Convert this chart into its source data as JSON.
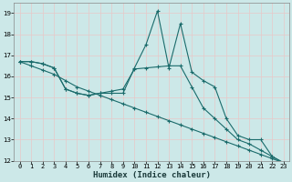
{
  "xlabel": "Humidex (Indice chaleur)",
  "bg_color": "#cce8e8",
  "grid_color": "#e8c8c8",
  "line_color": "#1a6b6b",
  "xlim": [
    -0.5,
    23.5
  ],
  "ylim": [
    12,
    19.5
  ],
  "yticks": [
    12,
    13,
    14,
    15,
    16,
    17,
    18,
    19
  ],
  "xticks": [
    0,
    1,
    2,
    3,
    4,
    5,
    6,
    7,
    8,
    9,
    10,
    11,
    12,
    13,
    14,
    15,
    16,
    17,
    18,
    19,
    20,
    21,
    22,
    23
  ],
  "line1_x": [
    0,
    1,
    2,
    3,
    4,
    5,
    6,
    7,
    8,
    9,
    10,
    11,
    12,
    13,
    14,
    15,
    16,
    17,
    18,
    19,
    20,
    21,
    22,
    23
  ],
  "line1_y": [
    16.7,
    16.7,
    16.6,
    16.4,
    15.4,
    15.2,
    15.1,
    15.2,
    15.2,
    15.2,
    16.4,
    17.5,
    19.1,
    16.4,
    18.5,
    16.2,
    15.8,
    15.5,
    14.0,
    13.2,
    13.0,
    13.0,
    12.2,
    11.9
  ],
  "line2_x": [
    0,
    1,
    2,
    3,
    4,
    5,
    6,
    7,
    8,
    9,
    10,
    11,
    12,
    13,
    14,
    15,
    16,
    17,
    18,
    19,
    20,
    21,
    22,
    23
  ],
  "line2_y": [
    16.7,
    16.7,
    16.6,
    16.4,
    15.4,
    15.2,
    15.1,
    15.2,
    15.3,
    15.4,
    16.35,
    16.4,
    16.45,
    16.5,
    16.5,
    15.5,
    14.5,
    14.0,
    13.5,
    13.0,
    12.8,
    12.5,
    12.2,
    11.9
  ],
  "line3_x": [
    0,
    1,
    2,
    3,
    4,
    5,
    6,
    7,
    8,
    9,
    10,
    11,
    12,
    13,
    14,
    15,
    16,
    17,
    18,
    19,
    20,
    21,
    22,
    23
  ],
  "line3_y": [
    16.7,
    16.5,
    16.3,
    16.1,
    15.8,
    15.5,
    15.3,
    15.1,
    14.9,
    14.7,
    14.5,
    14.3,
    14.1,
    13.9,
    13.7,
    13.5,
    13.3,
    13.1,
    12.9,
    12.7,
    12.5,
    12.3,
    12.1,
    11.9
  ]
}
